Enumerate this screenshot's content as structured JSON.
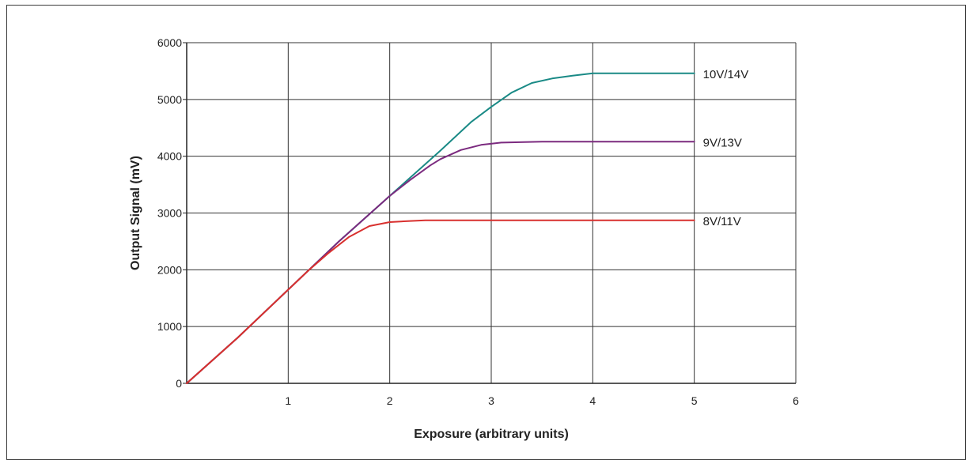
{
  "chart_data": {
    "type": "line",
    "title": "",
    "xlabel": "Exposure (arbitrary units)",
    "ylabel": "Output Signal (mV)",
    "xlim": [
      0,
      6
    ],
    "ylim": [
      0,
      6000
    ],
    "xticks": [
      1,
      2,
      3,
      4,
      5,
      6
    ],
    "yticks": [
      0,
      1000,
      2000,
      3000,
      4000,
      5000,
      6000
    ],
    "grid": true,
    "legend": "none",
    "series": [
      {
        "name": "10V/14V",
        "color": "#1a8a86",
        "x": [
          0,
          0.5,
          1,
          1.5,
          2,
          2.5,
          2.8,
          3,
          3.2,
          3.4,
          3.6,
          3.8,
          4,
          4.5,
          5
        ],
        "y": [
          0,
          800,
          1650,
          2500,
          3300,
          4100,
          4600,
          4870,
          5120,
          5290,
          5370,
          5420,
          5460,
          5460,
          5460
        ]
      },
      {
        "name": "9V/13V",
        "color": "#7b2a7f",
        "x": [
          0,
          0.5,
          1,
          1.5,
          2,
          2.2,
          2.4,
          2.5,
          2.7,
          2.9,
          3.1,
          3.5,
          4,
          5
        ],
        "y": [
          0,
          800,
          1650,
          2500,
          3300,
          3580,
          3840,
          3950,
          4110,
          4200,
          4240,
          4255,
          4255,
          4255
        ]
      },
      {
        "name": "8V/11V",
        "color": "#d8302e",
        "x": [
          0,
          0.5,
          1,
          1.2,
          1.4,
          1.6,
          1.8,
          2.0,
          2.2,
          2.35,
          3,
          5
        ],
        "y": [
          0,
          800,
          1650,
          1990,
          2300,
          2580,
          2770,
          2840,
          2860,
          2870,
          2870,
          2870
        ]
      }
    ]
  }
}
